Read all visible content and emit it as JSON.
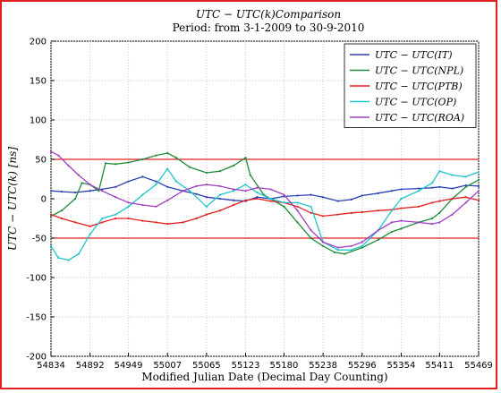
{
  "chart_data": {
    "type": "line",
    "title": "UTC − UTC(k)Comparison",
    "subtitle": "Period:  from 3-1-2009  to 30-9-2010",
    "xlabel": "Modified Julian Date (Decimal Day Counting)",
    "ylabel": "UTC − UTC(k)  [ns]",
    "xlim": [
      54834,
      55469
    ],
    "ylim": [
      -200,
      200
    ],
    "x_ticks": [
      54834,
      54892,
      54949,
      55007,
      55065,
      55123,
      55180,
      55238,
      55296,
      55354,
      55411,
      55469
    ],
    "y_ticks": [
      -200,
      -150,
      -100,
      -50,
      0,
      50,
      100,
      150,
      200
    ],
    "grid": true,
    "legend_position": "top-right",
    "reference_lines": [
      50,
      -50
    ],
    "series": [
      {
        "name": "UTC − UTC(IT)",
        "color": "#2a3fb0",
        "x": [
          54834,
          54850,
          54870,
          54892,
          54910,
          54930,
          54949,
          54970,
          54990,
          55007,
          55030,
          55050,
          55065,
          55085,
          55105,
          55123,
          55140,
          55160,
          55180,
          55200,
          55220,
          55238,
          55260,
          55280,
          55296,
          55320,
          55340,
          55354,
          55380,
          55400,
          55411,
          55430,
          55450,
          55469
        ],
        "values": [
          10,
          9,
          8,
          10,
          12,
          15,
          22,
          28,
          22,
          15,
          10,
          6,
          2,
          0,
          -2,
          -3,
          2,
          0,
          3,
          4,
          5,
          2,
          -3,
          -1,
          4,
          7,
          10,
          12,
          13,
          14,
          15,
          13,
          17,
          16
        ]
      },
      {
        "name": "UTC − UTC(NPL)",
        "color": "#1e8a3a",
        "x": [
          54834,
          54850,
          54870,
          54880,
          54892,
          54905,
          54915,
          54930,
          54949,
          54970,
          54990,
          55007,
          55020,
          55040,
          55065,
          55085,
          55105,
          55123,
          55130,
          55150,
          55180,
          55200,
          55220,
          55238,
          55255,
          55270,
          55296,
          55320,
          55340,
          55354,
          55380,
          55400,
          55411,
          55430,
          55450,
          55469
        ],
        "values": [
          -22,
          -15,
          0,
          20,
          18,
          10,
          45,
          44,
          46,
          50,
          55,
          58,
          52,
          40,
          33,
          35,
          42,
          52,
          30,
          5,
          -10,
          -30,
          -50,
          -60,
          -68,
          -70,
          -62,
          -52,
          -42,
          -38,
          -30,
          -25,
          -18,
          0,
          15,
          24
        ]
      },
      {
        "name": "UTC − UTC(PTB)",
        "color": "#e02020",
        "x": [
          54834,
          54850,
          54870,
          54892,
          54910,
          54930,
          54949,
          54970,
          54990,
          55007,
          55030,
          55050,
          55065,
          55085,
          55105,
          55123,
          55140,
          55160,
          55180,
          55200,
          55220,
          55238,
          55260,
          55280,
          55296,
          55320,
          55340,
          55354,
          55380,
          55400,
          55411,
          55430,
          55450,
          55469
        ],
        "values": [
          -20,
          -25,
          -30,
          -35,
          -30,
          -25,
          -25,
          -28,
          -30,
          -32,
          -30,
          -25,
          -20,
          -15,
          -8,
          -2,
          0,
          -3,
          -5,
          -10,
          -18,
          -22,
          -20,
          -18,
          -17,
          -15,
          -14,
          -12,
          -10,
          -5,
          -3,
          0,
          2,
          -2
        ]
      },
      {
        "name": "UTC − UTC(OP)",
        "color": "#20c4cc",
        "x": [
          54834,
          54845,
          54860,
          54875,
          54892,
          54910,
          54930,
          54949,
          54970,
          54990,
          55007,
          55020,
          55040,
          55065,
          55085,
          55105,
          55123,
          55140,
          55160,
          55180,
          55200,
          55220,
          55238,
          55260,
          55280,
          55296,
          55320,
          55340,
          55354,
          55380,
          55400,
          55411,
          55430,
          55450,
          55469
        ],
        "values": [
          -60,
          -75,
          -78,
          -70,
          -45,
          -25,
          -20,
          -10,
          5,
          18,
          38,
          22,
          10,
          -10,
          5,
          10,
          18,
          8,
          0,
          -5,
          -5,
          -10,
          -55,
          -65,
          -65,
          -60,
          -40,
          -15,
          0,
          10,
          20,
          35,
          30,
          28,
          34
        ]
      },
      {
        "name": "UTC − UTC(ROA)",
        "color": "#a040c0",
        "x": [
          54834,
          54845,
          54860,
          54875,
          54892,
          54910,
          54930,
          54949,
          54970,
          54990,
          55007,
          55030,
          55050,
          55065,
          55085,
          55105,
          55123,
          55140,
          55160,
          55180,
          55200,
          55220,
          55238,
          55260,
          55280,
          55296,
          55320,
          55340,
          55354,
          55380,
          55400,
          55411,
          55430,
          55450,
          55469
        ],
        "values": [
          60,
          55,
          42,
          30,
          18,
          10,
          2,
          -5,
          -8,
          -10,
          -2,
          10,
          16,
          18,
          16,
          12,
          10,
          14,
          12,
          5,
          -15,
          -40,
          -55,
          -62,
          -60,
          -55,
          -40,
          -30,
          -28,
          -30,
          -32,
          -30,
          -20,
          -5,
          10
        ]
      }
    ]
  }
}
